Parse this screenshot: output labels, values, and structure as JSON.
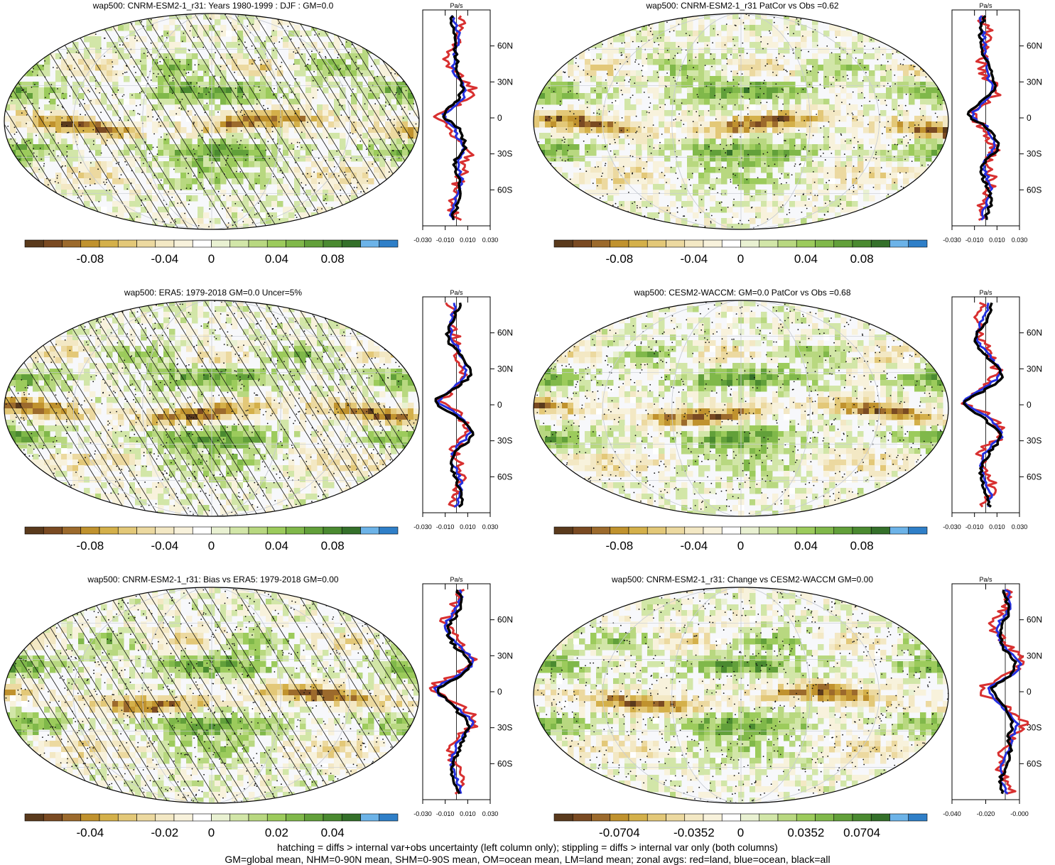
{
  "panels": [
    {
      "title": "wap500: CNRM-ESM2-1_r31: Years 1980-1999 : DJF : GM=0.0",
      "colorbar_ticks": [
        "-0.08",
        "-0.04",
        "0",
        "0.04",
        "0.08"
      ],
      "zonal_ticks": [
        "-0.030",
        "-0.010",
        "0.010",
        "0.030"
      ],
      "lat_labels": [
        "60N",
        "30N",
        "0",
        "30S",
        "60S"
      ],
      "hatched": true,
      "seed": 11
    },
    {
      "title": "wap500: CNRM-ESM2-1_r31 PatCor vs Obs =0.62",
      "colorbar_ticks": [
        "-0.08",
        "-0.04",
        "0",
        "0.04",
        "0.08"
      ],
      "zonal_ticks": [
        "-0.030",
        "-0.010",
        "0.010",
        "0.030"
      ],
      "lat_labels": [
        "60N",
        "30N",
        "0",
        "30S",
        "60S"
      ],
      "hatched": false,
      "seed": 23
    },
    {
      "title": "wap500: ERA5: 1979-2018 GM=0.0 Uncer=5%",
      "colorbar_ticks": [
        "-0.08",
        "-0.04",
        "0",
        "0.04",
        "0.08"
      ],
      "zonal_ticks": [
        "-0.030",
        "-0.010",
        "0.010",
        "0.030"
      ],
      "lat_labels": [
        "60N",
        "30N",
        "0",
        "30S",
        "60S"
      ],
      "hatched": true,
      "seed": 37
    },
    {
      "title": "wap500: CESM2-WACCM: GM=0.0 PatCor vs Obs =0.68",
      "colorbar_ticks": [
        "-0.08",
        "-0.04",
        "0",
        "0.04",
        "0.08"
      ],
      "zonal_ticks": [
        "-0.030",
        "-0.010",
        "0.010",
        "0.030"
      ],
      "lat_labels": [
        "60N",
        "30N",
        "0",
        "30S",
        "60S"
      ],
      "hatched": false,
      "seed": 41
    },
    {
      "title": "wap500: CNRM-ESM2-1_r31: Bias vs ERA5: 1979-2018 GM=0.00",
      "colorbar_ticks": [
        "-0.04",
        "-0.02",
        "0",
        "0.02",
        "0.04"
      ],
      "zonal_ticks": [
        "-0.030",
        "-0.010",
        "0.010",
        "0.030"
      ],
      "lat_labels": [
        "60N",
        "30N",
        "0",
        "30S",
        "60S"
      ],
      "hatched": true,
      "seed": 53
    },
    {
      "title": "wap500: CNRM-ESM2-1_r31: Change vs CESM2-WACCM GM=0.00",
      "colorbar_ticks": [
        "-0.0704",
        "-0.0352",
        "0",
        "0.0352",
        "0.0704"
      ],
      "zonal_ticks": [
        "-0.040",
        "-0.020",
        "-0.000"
      ],
      "lat_labels": [
        "60N",
        "30N",
        "0",
        "30S",
        "60S"
      ],
      "hatched": false,
      "seed": 67
    }
  ],
  "zonal_unit": "Pa/s",
  "colors": {
    "palette": [
      "#5a3a1c",
      "#7a4a22",
      "#9c6a2c",
      "#c0922e",
      "#d4b04a",
      "#e3c878",
      "#ecd9a0",
      "#f3e8c4",
      "#f8f2dc",
      "#ffffff",
      "#e9f1d2",
      "#d2e6a8",
      "#b8d880",
      "#9ccb5c",
      "#80b84a",
      "#62a03a",
      "#4a8a30",
      "#34702a",
      "#6cb3e8",
      "#2f7fc8"
    ],
    "land": "#d83030",
    "ocean": "#2430e0",
    "all": "#000000"
  },
  "footer": {
    "line1": "hatching = diffs > internal var+obs uncertainty (left column only); stippling = diffs > internal var only (both columns)",
    "line2": "GM=global mean, NHM=0-90N mean, SHM=0-90S mean, OM=ocean mean, LM=land mean; zonal avgs: red=land, blue=ocean, black=all"
  },
  "chart_data": [
    {
      "type": "heatmap",
      "title": "wap500: CNRM-ESM2-1_r31: Years 1980-1999 : DJF : GM=0.0",
      "colorbar": [
        -0.1,
        0.1
      ],
      "zonal_xlim": [
        -0.03,
        0.03
      ],
      "zonal_ylim": [
        -90,
        90
      ],
      "series": [
        {
          "name": "red=land"
        },
        {
          "name": "blue=ocean"
        },
        {
          "name": "black=all"
        }
      ]
    },
    {
      "type": "heatmap",
      "title": "wap500: CNRM-ESM2-1_r31 PatCor vs Obs =0.62",
      "colorbar": [
        -0.1,
        0.1
      ],
      "zonal_xlim": [
        -0.03,
        0.03
      ]
    },
    {
      "type": "heatmap",
      "title": "wap500: ERA5: 1979-2018 GM=0.0 Uncer=5%",
      "colorbar": [
        -0.1,
        0.1
      ],
      "zonal_xlim": [
        -0.03,
        0.03
      ]
    },
    {
      "type": "heatmap",
      "title": "wap500: CESM2-WACCM: GM=0.0 PatCor vs Obs =0.68",
      "colorbar": [
        -0.1,
        0.1
      ],
      "zonal_xlim": [
        -0.03,
        0.03
      ]
    },
    {
      "type": "heatmap",
      "title": "wap500: CNRM-ESM2-1_r31: Bias vs ERA5: 1979-2018 GM=0.00",
      "colorbar": [
        -0.05,
        0.05
      ],
      "zonal_xlim": [
        -0.03,
        0.03
      ]
    },
    {
      "type": "heatmap",
      "title": "wap500: CNRM-ESM2-1_r31: Change vs CESM2-WACCM GM=0.00",
      "colorbar": [
        -0.088,
        0.088
      ],
      "zonal_xlim": [
        -0.04,
        0.0
      ]
    }
  ]
}
